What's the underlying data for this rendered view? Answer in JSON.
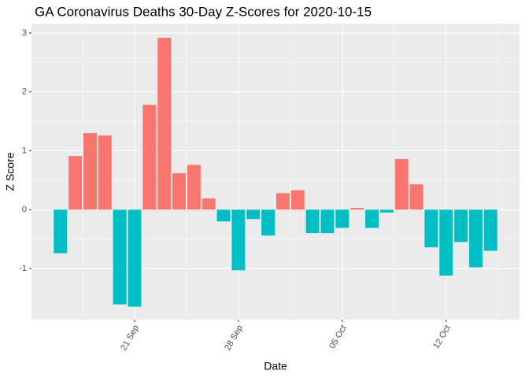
{
  "chart_data": {
    "type": "bar",
    "title": "GA Coronavirus Deaths 30-Day Z-Scores for 2020-10-15",
    "x_label": "Date",
    "y_label": "Z Score",
    "categories": [
      null,
      null,
      null,
      null,
      null,
      "21 Sep",
      null,
      null,
      null,
      null,
      null,
      null,
      "28 Sep",
      null,
      null,
      null,
      null,
      null,
      null,
      "05 Oct",
      null,
      null,
      null,
      null,
      null,
      null,
      "12 Oct",
      null,
      null,
      null
    ],
    "values": [
      -0.74,
      0.91,
      1.3,
      1.26,
      -1.61,
      -1.65,
      1.78,
      2.92,
      0.62,
      0.76,
      0.19,
      -0.2,
      -1.03,
      -0.16,
      -0.44,
      0.28,
      0.33,
      -0.4,
      -0.4,
      -0.31,
      0.03,
      -0.31,
      -0.05,
      0.86,
      0.43,
      -0.64,
      -1.12,
      -0.55,
      -0.98,
      -0.7
    ],
    "positive_color": "#F8766D",
    "negative_color": "#00BFC4",
    "ylim": [
      -1.87,
      3.16
    ],
    "yticks": [
      -1,
      0,
      1,
      2,
      3
    ],
    "grid": true
  }
}
